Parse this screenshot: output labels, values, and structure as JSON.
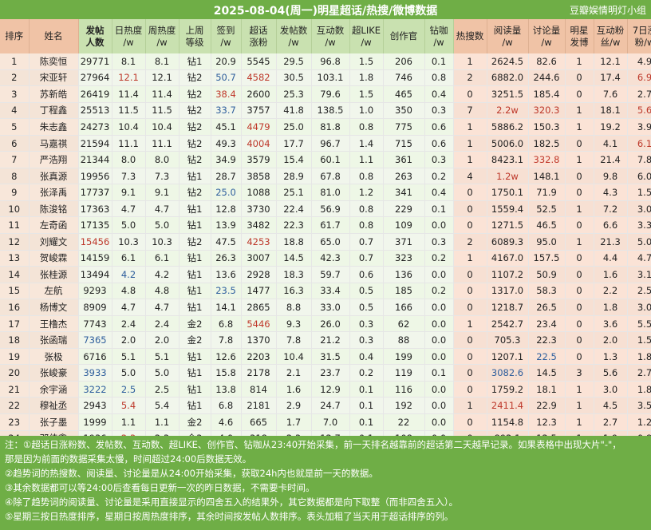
{
  "title": "2025-08-04(周一)明星超话/热搜/微博数据",
  "group": "豆瓣娱情明灯小组",
  "headers": [
    "排序",
    "姓名",
    "发帖\n人数",
    "日热度\n/w",
    "周热度\n/w",
    "上周\n等级",
    "签到\n/w",
    "超话\n涨粉",
    "发帖数\n/w",
    "互动数\n/w",
    "超LIKE\n/w",
    "创作官",
    "钻咖\n/w",
    "热搜数",
    "阅读量\n/w",
    "讨论量\n/w",
    "明星\n发博",
    "互动粉\n丝/w",
    "7日涨\n粉/w"
  ],
  "rows": [
    [
      "1",
      "陈奕恒",
      "29771",
      "8.1",
      "8.1",
      "钻1",
      "20.9",
      "5545",
      "29.5",
      "96.8",
      "1.5",
      "206",
      "0.1",
      "1",
      "2624.5",
      "82.6",
      "1",
      "12.1",
      "4.9"
    ],
    [
      "2",
      "宋亚轩",
      "27964",
      "12.1",
      "12.1",
      "钻2",
      "50.7",
      "4582",
      "30.5",
      "103.1",
      "1.8",
      "746",
      "0.8",
      "2",
      "6882.0",
      "244.6",
      "0",
      "17.4",
      "6.9"
    ],
    [
      "3",
      "苏新皓",
      "26419",
      "11.4",
      "11.4",
      "钻2",
      "38.4",
      "2600",
      "25.3",
      "79.6",
      "1.5",
      "465",
      "0.4",
      "0",
      "3251.5",
      "185.4",
      "0",
      "7.6",
      "2.7"
    ],
    [
      "4",
      "丁程鑫",
      "25513",
      "11.5",
      "11.5",
      "钻2",
      "33.7",
      "3757",
      "41.8",
      "138.5",
      "1.0",
      "350",
      "0.3",
      "7",
      "2.2w",
      "320.3",
      "1",
      "18.1",
      "5.6"
    ],
    [
      "5",
      "朱志鑫",
      "24273",
      "10.4",
      "10.4",
      "钻2",
      "45.1",
      "4479",
      "25.0",
      "81.8",
      "0.8",
      "775",
      "0.6",
      "1",
      "5886.2",
      "150.3",
      "1",
      "19.2",
      "3.9"
    ],
    [
      "6",
      "马嘉祺",
      "21594",
      "11.1",
      "11.1",
      "钻2",
      "49.3",
      "4004",
      "17.7",
      "96.7",
      "1.4",
      "715",
      "0.6",
      "1",
      "5006.0",
      "182.5",
      "0",
      "4.1",
      "6.1"
    ],
    [
      "7",
      "严浩翔",
      "21344",
      "8.0",
      "8.0",
      "钻2",
      "34.9",
      "3579",
      "15.4",
      "60.1",
      "1.1",
      "361",
      "0.3",
      "1",
      "8423.1",
      "332.8",
      "1",
      "21.4",
      "7.8"
    ],
    [
      "8",
      "张真源",
      "19956",
      "7.3",
      "7.3",
      "钻1",
      "28.7",
      "3858",
      "28.9",
      "67.8",
      "0.8",
      "263",
      "0.2",
      "4",
      "1.2w",
      "148.1",
      "0",
      "9.8",
      "6.0"
    ],
    [
      "9",
      "张泽禹",
      "17737",
      "9.1",
      "9.1",
      "钻2",
      "25.0",
      "1088",
      "25.1",
      "81.0",
      "1.2",
      "341",
      "0.4",
      "0",
      "1750.1",
      "71.9",
      "0",
      "4.3",
      "1.5"
    ],
    [
      "10",
      "陈浚铭",
      "17363",
      "4.7",
      "4.7",
      "钻1",
      "12.8",
      "3730",
      "22.4",
      "56.9",
      "0.8",
      "229",
      "0.1",
      "0",
      "1559.4",
      "52.5",
      "1",
      "7.2",
      "3.0"
    ],
    [
      "11",
      "左奇函",
      "17135",
      "5.0",
      "5.0",
      "钻1",
      "13.9",
      "3482",
      "22.3",
      "61.7",
      "0.8",
      "109",
      "0.0",
      "0",
      "1271.5",
      "46.5",
      "0",
      "6.6",
      "3.3"
    ],
    [
      "12",
      "刘耀文",
      "15456",
      "10.3",
      "10.3",
      "钻2",
      "47.5",
      "4253",
      "18.8",
      "65.0",
      "0.7",
      "371",
      "0.3",
      "2",
      "6089.3",
      "95.0",
      "1",
      "21.3",
      "5.0"
    ],
    [
      "13",
      "贺峻霖",
      "14159",
      "6.1",
      "6.1",
      "钻1",
      "26.3",
      "3007",
      "14.5",
      "42.3",
      "0.7",
      "323",
      "0.2",
      "1",
      "4167.0",
      "157.5",
      "0",
      "4.4",
      "4.7"
    ],
    [
      "14",
      "张桂源",
      "13494",
      "4.2",
      "4.2",
      "钻1",
      "13.6",
      "2928",
      "18.3",
      "59.7",
      "0.6",
      "136",
      "0.0",
      "0",
      "1107.2",
      "50.9",
      "0",
      "1.6",
      "3.1"
    ],
    [
      "15",
      "左航",
      "9293",
      "4.8",
      "4.8",
      "钻1",
      "23.5",
      "1477",
      "16.3",
      "33.4",
      "0.5",
      "185",
      "0.2",
      "0",
      "1317.0",
      "58.3",
      "0",
      "2.2",
      "2.5"
    ],
    [
      "16",
      "杨博文",
      "8909",
      "4.7",
      "4.7",
      "钻1",
      "14.1",
      "2865",
      "8.8",
      "33.0",
      "0.5",
      "166",
      "0.0",
      "0",
      "1218.7",
      "26.5",
      "0",
      "1.8",
      "3.0"
    ],
    [
      "17",
      "王橹杰",
      "7743",
      "2.4",
      "2.4",
      "金2",
      "6.8",
      "5446",
      "9.3",
      "26.0",
      "0.3",
      "62",
      "0.0",
      "1",
      "2542.7",
      "23.4",
      "0",
      "3.6",
      "5.5"
    ],
    [
      "18",
      "张函瑞",
      "7365",
      "2.0",
      "2.0",
      "金2",
      "7.8",
      "1370",
      "7.8",
      "21.2",
      "0.3",
      "88",
      "0.0",
      "0",
      "705.3",
      "22.3",
      "0",
      "2.0",
      "1.5"
    ],
    [
      "19",
      "张极",
      "6716",
      "5.1",
      "5.1",
      "钻1",
      "12.6",
      "2203",
      "10.4",
      "31.5",
      "0.4",
      "199",
      "0.0",
      "0",
      "1207.1",
      "22.5",
      "0",
      "1.3",
      "1.8"
    ],
    [
      "20",
      "张峻豪",
      "3933",
      "5.0",
      "5.0",
      "钻1",
      "15.8",
      "2178",
      "2.1",
      "23.7",
      "0.2",
      "119",
      "0.1",
      "0",
      "3082.6",
      "14.5",
      "3",
      "5.6",
      "2.7"
    ],
    [
      "21",
      "余宇涵",
      "3222",
      "2.5",
      "2.5",
      "钻1",
      "13.8",
      "814",
      "1.6",
      "12.9",
      "0.1",
      "116",
      "0.0",
      "0",
      "1759.2",
      "18.1",
      "1",
      "3.0",
      "1.8"
    ],
    [
      "22",
      "穆祉丞",
      "2943",
      "5.4",
      "5.4",
      "钻1",
      "6.8",
      "2181",
      "2.9",
      "24.7",
      "0.1",
      "192",
      "0.0",
      "1",
      "2411.4",
      "22.9",
      "1",
      "4.5",
      "3.5"
    ],
    [
      "23",
      "张子墨",
      "1999",
      "1.1",
      "1.1",
      "金2",
      "4.6",
      "665",
      "1.7",
      "7.0",
      "0.1",
      "22",
      "0.0",
      "0",
      "1154.8",
      "12.3",
      "1",
      "2.7",
      "1.2"
    ],
    [
      "24",
      "邓佳鑫",
      "1936",
      "2.3",
      "2.3",
      "金3",
      "4.0",
      "318",
      "2.3",
      "12.7",
      "0.1",
      "108",
      "0.0",
      "0",
      "892.1",
      "12.5",
      "1",
      "1.9",
      "0.8"
    ]
  ],
  "notes": [
    "注：①超话日涨粉数、发帖数、互动数、超LIKE、创作官、钻咖从23:40开始采集，前一天排名越靠前的超话第二天越早记录。如果表格中出现大片\"-\"，",
    "     那是因为前面的数据采集太慢，时间超过24:00后数据无效。",
    "     ②趋势词的热搜数、阅读量、讨论量是从24:00开始采集，获取24h内也就是前一天的数据。",
    "     ③其余数据都可以等24:00后查看每日更新一次的昨日数据，不需要卡时间。",
    "     ④除了趋势词的阅读量、讨论量是采用直接显示的四舍五入的结果外，其它数据都是向下取整（而非四舍五入）。",
    "     ⑤星期三按日热度排序，星期日按周热度排序，其余时间按发帖人数排序。表头加粗了当天用于超话排序的列。"
  ],
  "colors": {
    "green": "#6fae46",
    "header_green": "#c9e1b0",
    "pink": "#f0c3a6",
    "red_text": "#c0392b",
    "blue_text": "#2f5f9e"
  }
}
